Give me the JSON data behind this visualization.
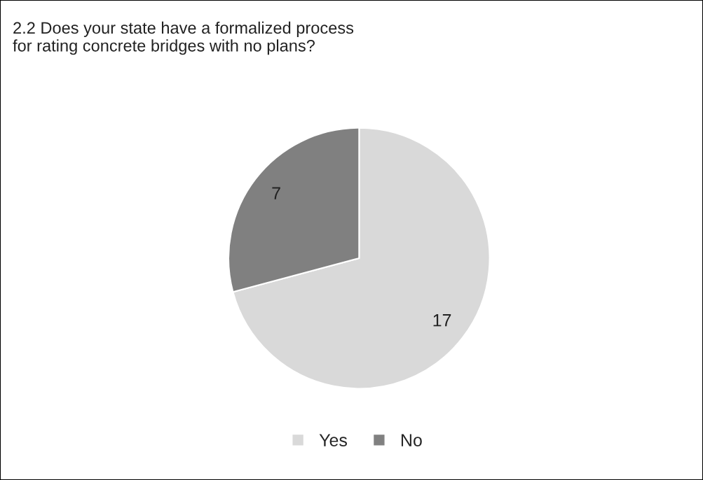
{
  "chart_data": {
    "type": "pie",
    "title": "2.2 Does your state have a formalized process\nfor rating concrete bridges with no plans?",
    "categories": [
      "Yes",
      "No"
    ],
    "values": [
      17,
      7
    ],
    "colors": [
      "#d9d9d9",
      "#808080"
    ],
    "data_labels": true,
    "legend": "bottom"
  }
}
